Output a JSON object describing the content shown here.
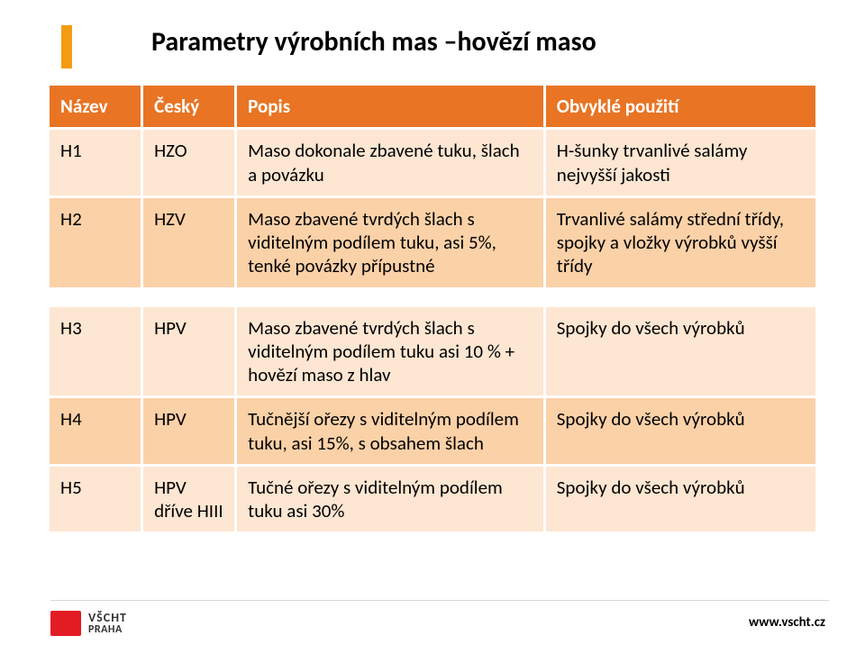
{
  "title": "Parametry výrobních mas –hovězí maso",
  "columns": [
    "Název",
    "Český",
    "Popis",
    "Obvyklé použití"
  ],
  "section1": [
    {
      "c1": "H1",
      "c2": "HZO",
      "c3": "Maso dokonale zbavené tuku, šlach a povázku",
      "c4": "H-šunky trvanlivé salámy nejvyšší jakosti"
    },
    {
      "c1": "H2",
      "c2": "HZV",
      "c3": "Maso zbavené tvrdých šlach s viditelným podílem tuku, asi 5%, tenké povázky přípustné",
      "c4": "Trvanlivé salámy střední třídy, spojky a vložky výrobků vyšší třídy"
    }
  ],
  "section2": [
    {
      "c1": "H3",
      "c2": "HPV",
      "c3": "Maso zbavené tvrdých šlach s viditelným podílem tuku asi 10 % + hovězí maso z hlav",
      "c4": "Spojky do všech výrobků"
    },
    {
      "c1": "H4",
      "c2": "HPV",
      "c3": "Tučnější ořezy s viditelným podílem tuku, asi 15%, s obsahem šlach",
      "c4": "Spojky do všech výrobků"
    },
    {
      "c1": "H5",
      "c2": "HPV dříve HIII",
      "c3": "Tučné ořezy s viditelným podílem tuku asi 30%",
      "c4": "Spojky do všech výrobků"
    }
  ],
  "logo": {
    "line1": "VŠCHT",
    "line2": "PRAHA"
  },
  "footer_url": "www.vscht.cz",
  "colors": {
    "accent_bar": "#f39c12",
    "header_bg": "#e87424",
    "row_light": "#fde6d2",
    "row_dark": "#fbd1a8",
    "logo_mark": "#e31b23"
  }
}
